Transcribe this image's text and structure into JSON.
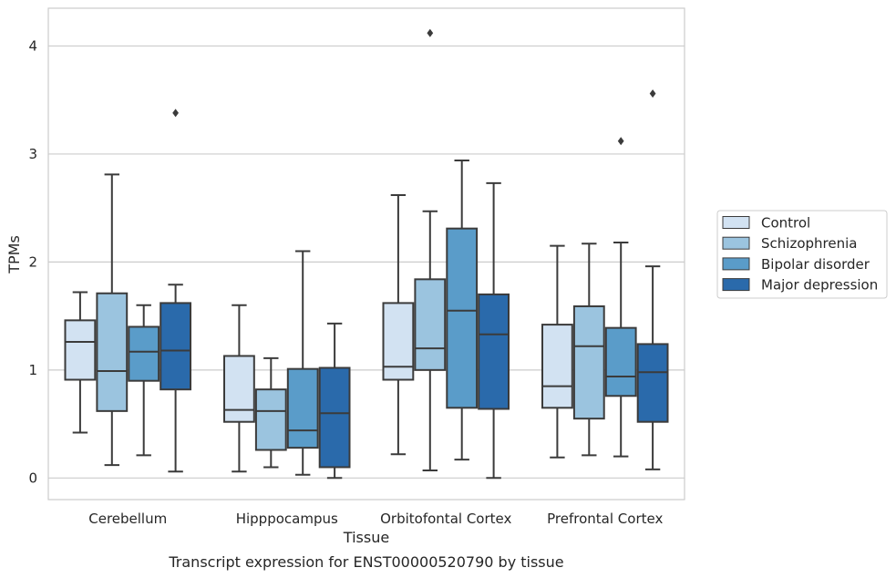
{
  "chart_data": {
    "type": "box",
    "caption": "Transcript expression for ENST00000520790 by tissue",
    "xlabel": "Tissue",
    "ylabel": "TPMs",
    "ylim": [
      -0.2,
      4.35
    ],
    "yticks": [
      0,
      1,
      2,
      3,
      4
    ],
    "grid": "horizontal",
    "legend_position": "right",
    "categories": [
      "Cerebellum",
      "Hipppocampus",
      "Orbitofontal Cortex",
      "Prefrontal Cortex"
    ],
    "series": [
      {
        "name": "Control",
        "color": "#d2e2f2",
        "boxes": [
          {
            "whisker_low": 0.42,
            "q1": 0.91,
            "median": 1.26,
            "q3": 1.46,
            "whisker_high": 1.72,
            "outliers": []
          },
          {
            "whisker_low": 0.06,
            "q1": 0.52,
            "median": 0.63,
            "q3": 1.13,
            "whisker_high": 1.6,
            "outliers": []
          },
          {
            "whisker_low": 0.22,
            "q1": 0.91,
            "median": 1.03,
            "q3": 1.62,
            "whisker_high": 2.62,
            "outliers": []
          },
          {
            "whisker_low": 0.19,
            "q1": 0.65,
            "median": 0.85,
            "q3": 1.42,
            "whisker_high": 2.15,
            "outliers": []
          }
        ]
      },
      {
        "name": "Schizophrenia",
        "color": "#9bc4df",
        "boxes": [
          {
            "whisker_low": 0.12,
            "q1": 0.62,
            "median": 0.99,
            "q3": 1.71,
            "whisker_high": 2.81,
            "outliers": []
          },
          {
            "whisker_low": 0.1,
            "q1": 0.26,
            "median": 0.62,
            "q3": 0.82,
            "whisker_high": 1.11,
            "outliers": []
          },
          {
            "whisker_low": 0.07,
            "q1": 1.0,
            "median": 1.2,
            "q3": 1.84,
            "whisker_high": 2.47,
            "outliers": [
              4.12
            ]
          },
          {
            "whisker_low": 0.21,
            "q1": 0.55,
            "median": 1.22,
            "q3": 1.59,
            "whisker_high": 2.17,
            "outliers": []
          }
        ]
      },
      {
        "name": "Bipolar disorder",
        "color": "#5a9cc9",
        "boxes": [
          {
            "whisker_low": 0.21,
            "q1": 0.9,
            "median": 1.17,
            "q3": 1.4,
            "whisker_high": 1.6,
            "outliers": []
          },
          {
            "whisker_low": 0.03,
            "q1": 0.28,
            "median": 0.44,
            "q3": 1.01,
            "whisker_high": 2.1,
            "outliers": []
          },
          {
            "whisker_low": 0.17,
            "q1": 0.65,
            "median": 1.55,
            "q3": 2.31,
            "whisker_high": 2.94,
            "outliers": []
          },
          {
            "whisker_low": 0.2,
            "q1": 0.76,
            "median": 0.94,
            "q3": 1.39,
            "whisker_high": 2.18,
            "outliers": [
              3.12
            ]
          }
        ]
      },
      {
        "name": "Major depression",
        "color": "#2a6aab",
        "boxes": [
          {
            "whisker_low": 0.06,
            "q1": 0.82,
            "median": 1.18,
            "q3": 1.62,
            "whisker_high": 1.79,
            "outliers": [
              3.38
            ]
          },
          {
            "whisker_low": 0.0,
            "q1": 0.1,
            "median": 0.6,
            "q3": 1.02,
            "whisker_high": 1.43,
            "outliers": []
          },
          {
            "whisker_low": 0.0,
            "q1": 0.64,
            "median": 1.33,
            "q3": 1.7,
            "whisker_high": 2.73,
            "outliers": []
          },
          {
            "whisker_low": 0.08,
            "q1": 0.52,
            "median": 0.98,
            "q3": 1.24,
            "whisker_high": 1.96,
            "outliers": [
              3.56
            ]
          }
        ]
      }
    ]
  }
}
